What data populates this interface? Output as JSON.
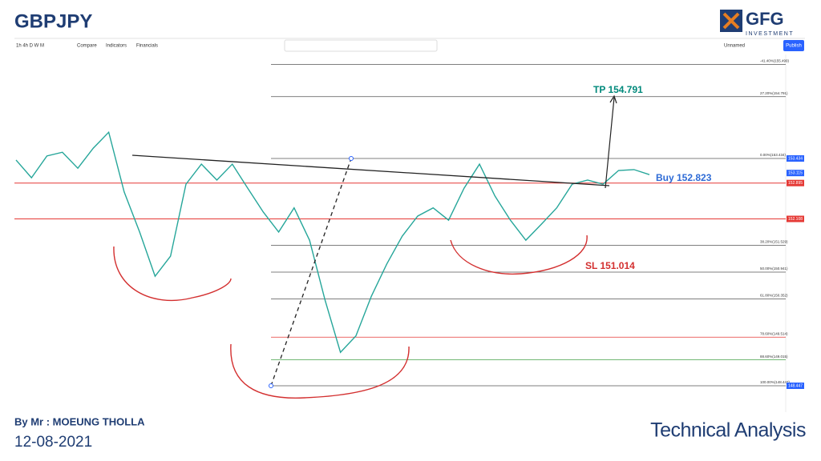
{
  "header": {
    "title": "GBPJPY",
    "logo": "GFG",
    "logo_sub": "INVESTMENT"
  },
  "toolbar": {
    "intervals": "1h 4h D W M",
    "compare": "Compare",
    "indicators": "Indicators",
    "financials": "Financials",
    "layout": "Unnamed",
    "publish": "Publish"
  },
  "chart_data": {
    "type": "line",
    "color": "#26a69a",
    "categories": [
      null,
      null,
      null,
      null,
      null,
      null,
      null,
      null,
      null,
      null,
      null,
      null,
      null,
      null,
      null,
      null,
      null,
      null,
      null,
      null,
      null,
      null,
      null,
      null,
      null,
      null,
      null,
      null,
      null,
      null,
      null,
      null,
      null,
      null,
      null,
      null,
      null,
      null,
      null,
      null,
      null,
      null
    ],
    "values": [
      153.4,
      153.01,
      153.49,
      153.57,
      153.22,
      153.66,
      154.01,
      152.7,
      151.82,
      150.85,
      151.29,
      152.87,
      153.31,
      152.96,
      153.31,
      152.78,
      152.26,
      151.82,
      152.35,
      151.64,
      150.33,
      149.18,
      149.54,
      150.41,
      151.12,
      151.73,
      152.17,
      152.35,
      152.08,
      152.78,
      153.31,
      152.61,
      152.08,
      151.64,
      151.99,
      152.35,
      152.87,
      152.96,
      152.87,
      153.17,
      153.19,
      153.08
    ],
    "ylim": [
      147.955,
      155.594
    ],
    "yticks": [
      153.434,
      153.115,
      152.895,
      152.108,
      148.447
    ],
    "levels": [
      152.895,
      152.108
    ],
    "level_color": "#e53935",
    "fib_levels": [
      {
        "value": 155.499,
        "label": "-41.40%(155.499)",
        "color": "#555555"
      },
      {
        "value": 154.791,
        "label": "27.20%(154.791)",
        "color": "#555555"
      },
      {
        "value": 153.434,
        "label": "0.00%(153.434)",
        "color": "#555555"
      },
      {
        "value": 151.529,
        "label": "38.20%(151.529)",
        "color": "#555555"
      },
      {
        "value": 150.941,
        "label": "50.00%(150.941)",
        "color": "#555555"
      },
      {
        "value": 150.352,
        "label": "61.80%(150.352)",
        "color": "#555555"
      },
      {
        "value": 149.514,
        "label": "78.60%(149.514)",
        "color": "#e53935"
      },
      {
        "value": 149.015,
        "label": "88.60%(149.015)",
        "color": "#43a047"
      },
      {
        "value": 148.447,
        "label": "100.00%(148.447)",
        "color": "#555555"
      }
    ],
    "annotations": {
      "tp": "TP 154.791",
      "buy": "Buy 152.823",
      "sl": "SL 151.014"
    }
  },
  "footer": {
    "author": "By Mr : MOEUNG THOLLA",
    "date": "12-08-2021",
    "caption": "Technical Analysis"
  }
}
